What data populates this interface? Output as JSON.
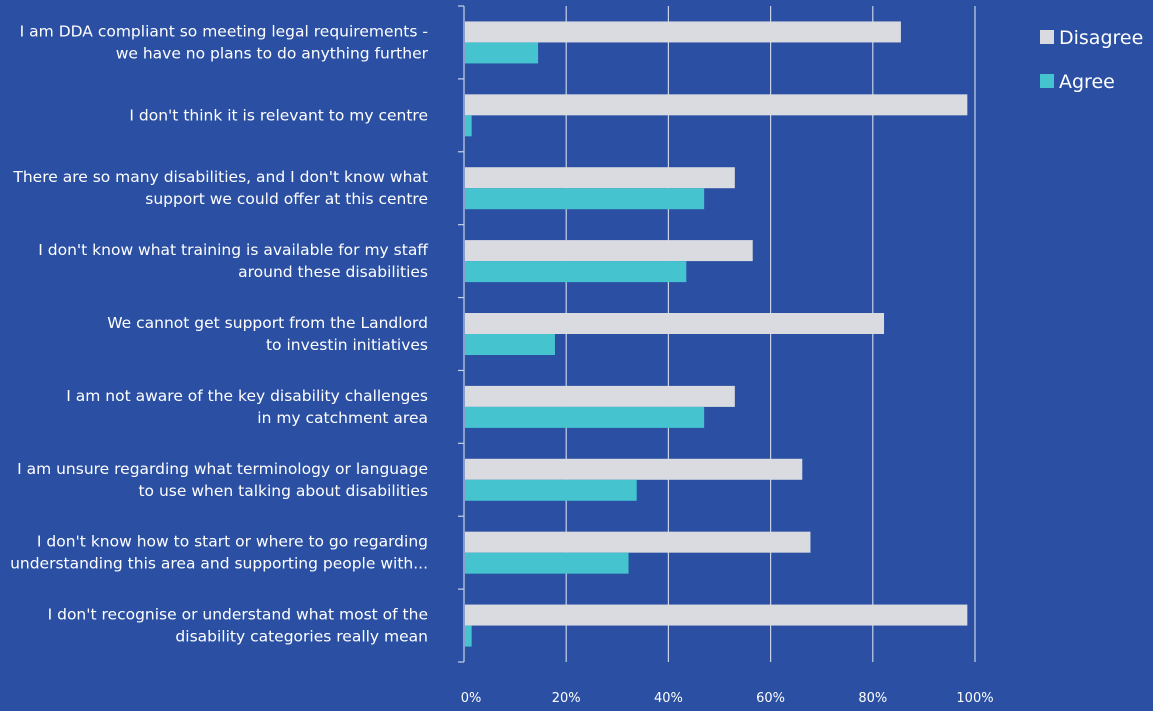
{
  "colors": {
    "background": "#2a4fa3",
    "grid": "#c9d2e8",
    "disagree": "#d9dbe1",
    "agree": "#45c3cf",
    "text": "#ffffff"
  },
  "chart_data": {
    "type": "bar",
    "orientation": "horizontal",
    "title": "",
    "xlabel": "",
    "ylabel": "",
    "xlim": [
      0,
      100
    ],
    "x_ticks": [
      "0%",
      "20%",
      "40%",
      "60%",
      "80%",
      "100%"
    ],
    "grid": true,
    "legend_position": "top-right",
    "categories": [
      [
        "I am DDA compliant so meeting legal requirements -",
        "we have no plans to do anything further"
      ],
      [
        "I don't think it is relevant to my centre"
      ],
      [
        "There are so many disabilities, and I don't know what",
        "support we could offer at this centre"
      ],
      [
        "I don't know what training is available for my staff",
        "around these disabilities"
      ],
      [
        "We cannot get support from the Landlord",
        "to investin initiatives"
      ],
      [
        "I am not aware of the key disability challenges",
        "in my catchment area"
      ],
      [
        "I am unsure regarding what terminology or language",
        "to use when talking about disabilities"
      ],
      [
        "I don't know how to start or where to go regarding",
        "understanding this area and supporting people with..."
      ],
      [
        "I don't recognise or understand what most of the",
        "disability categories really mean"
      ]
    ],
    "series": [
      {
        "name": "Disagree",
        "values": [
          85.5,
          98.5,
          53,
          56.5,
          82.2,
          53,
          66.2,
          67.8,
          98.5
        ]
      },
      {
        "name": "Agree",
        "values": [
          14.5,
          1.5,
          47,
          43.5,
          17.8,
          47,
          33.8,
          32.2,
          1.5
        ]
      }
    ]
  }
}
